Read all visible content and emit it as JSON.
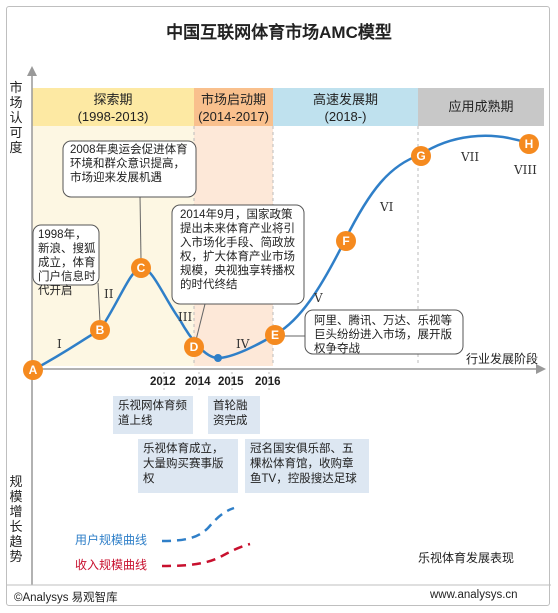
{
  "title": "中国互联网体育市场AMC模型",
  "y_axis_top_label": "市场认可度",
  "y_axis_bottom_label": "规模增长趋势",
  "x_axis_label": "行业发展阶段",
  "phases": [
    {
      "name": "探索期",
      "years": "(1998-2013)",
      "color": "#fde9a3"
    },
    {
      "name": "市场启动期",
      "years": "(2014-2017)",
      "color": "#f9c08d"
    },
    {
      "name": "高速发展期",
      "years": "(2018-)",
      "color": "#bfe1ee"
    },
    {
      "name": "应用成熟期",
      "years": "",
      "color": "#c8c8c8"
    }
  ],
  "curve_nodes": [
    "A",
    "B",
    "C",
    "D",
    "E",
    "F",
    "G",
    "H"
  ],
  "stage_numerals": [
    "I",
    "II",
    "III",
    "IV",
    "V",
    "VI",
    "VII",
    "VIII"
  ],
  "callouts": [
    "1998年，新浪、搜狐成立，体育门户信息时代开启",
    "2008年奥运会促进体育环境和群众意识提高，市场迎来发展机遇",
    "2014年9月，国家政策提出未来体育产业将引入市场化手段、简政放权，扩大体育产业市场规模，央视独享转播权的时代终结",
    "阿里、腾讯、万达、乐视等巨头纷纷进入市场，展开版权争夺战"
  ],
  "years": [
    "2012",
    "2014",
    "2015",
    "2016"
  ],
  "events": [
    "乐视网体育频道上线",
    "首轮融资完成",
    "乐视体育成立，大量购买赛事版权",
    "冠名国安俱乐部、五棵松体育馆，收购章鱼TV，控股搜达足球"
  ],
  "legend": {
    "user_scale": "用户规模曲线",
    "revenue_scale": "收入规模曲线",
    "user_color": "#2f7fc8",
    "revenue_color": "#c8102e"
  },
  "section_label": "乐视体育发展表现",
  "footer_left": "©Analysys 易观智库",
  "footer_right": "www.analysys.cn",
  "colors": {
    "node": "#f58a1f",
    "curve": "#2f7fc8",
    "axis": "#999999"
  }
}
